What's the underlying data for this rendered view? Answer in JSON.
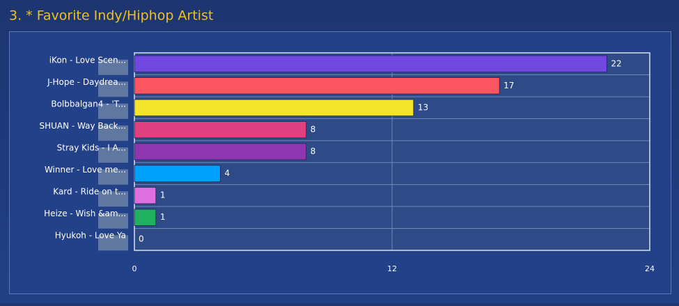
{
  "chart_data": {
    "type": "bar",
    "orientation": "horizontal",
    "title": "3. * Favorite Indy/Hiphop Artist",
    "categories": [
      "iKon - Love Scen...",
      "J-Hope - Daydrea...",
      "Bolbbalgan4 - 'T...",
      "SHUAN - Way Back...",
      "Stray Kids - I A...",
      "Winner - Love me...",
      "Kard - Ride on t...",
      "Heize - Wish &am...",
      "Hyukoh - Love Ya"
    ],
    "values": [
      22,
      17,
      13,
      8,
      8,
      4,
      1,
      1,
      0
    ],
    "colors": [
      "#7048e0",
      "#fa5560",
      "#f5e52a",
      "#e04080",
      "#8e35b0",
      "#00a0ff",
      "#e070e0",
      "#20b060",
      "#ffa040"
    ],
    "xlim": [
      0,
      24
    ],
    "xticks": [
      0,
      12,
      24
    ],
    "grid": true
  }
}
